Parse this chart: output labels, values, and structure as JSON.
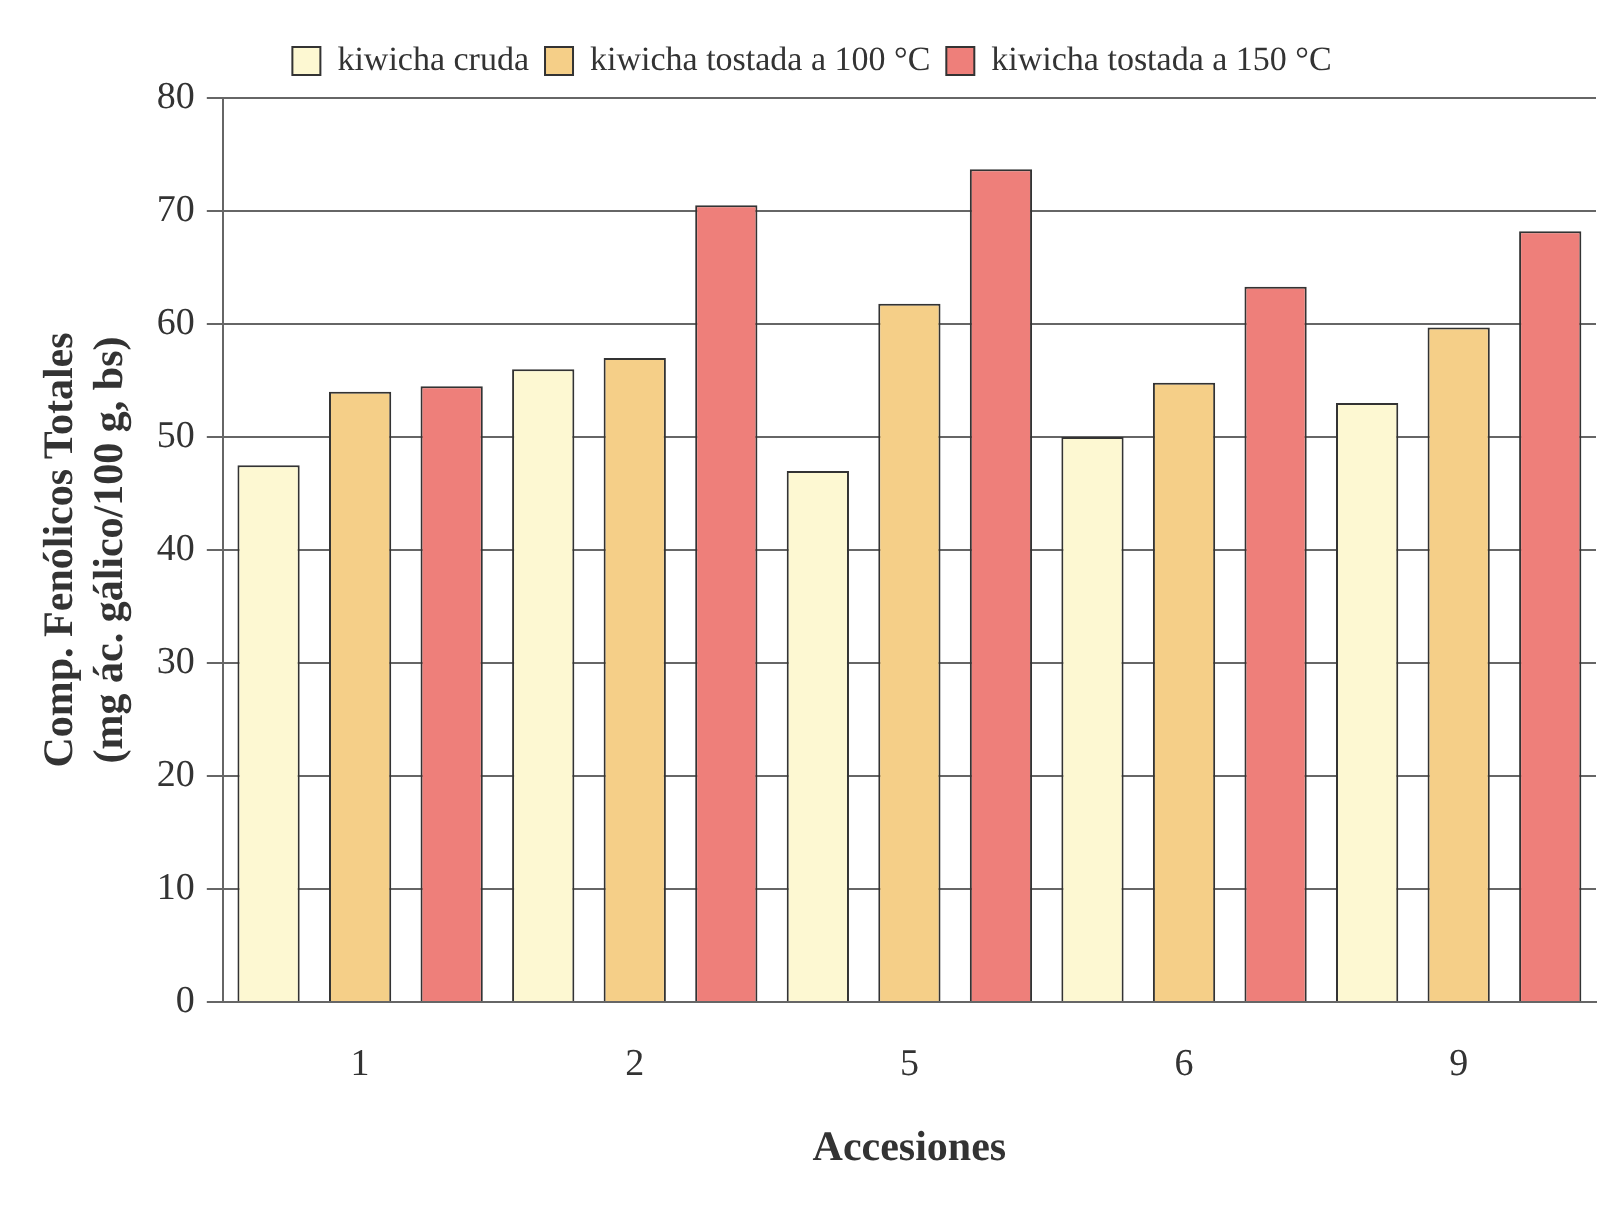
{
  "chart_data": {
    "type": "bar",
    "xlabel": "Accesiones",
    "ylabel": "Comp. Fenólicos Totales\n(mg ác. gálico/100 g, bs)",
    "categories": [
      "1",
      "2",
      "5",
      "6",
      "9"
    ],
    "series": [
      {
        "name": "kiwicha cruda",
        "color": "#fdf8d2",
        "values": [
          47.5,
          56,
          47,
          50,
          53
        ]
      },
      {
        "name": "kiwicha tostada a 100 °C",
        "color": "#f5cf88",
        "values": [
          54,
          57,
          61.8,
          54.8,
          59.7
        ]
      },
      {
        "name": "kiwicha tostada a 150 °C",
        "color": "#ee7f7a",
        "values": [
          54.5,
          70.5,
          73.7,
          63.3,
          68.2
        ]
      }
    ],
    "ylim": [
      0,
      80
    ],
    "yticks": [
      0,
      10,
      20,
      30,
      40,
      50,
      60,
      70,
      80
    ],
    "grid": "y",
    "legend": "top"
  }
}
